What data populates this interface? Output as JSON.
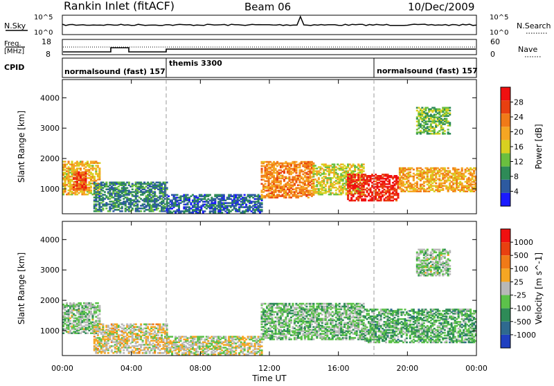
{
  "header": {
    "station": "Rankin Inlet (fitACF)",
    "beam": "Beam 06",
    "date": "10/Dec/2009"
  },
  "noise_panel": {
    "left_label": "N.Sky",
    "right_label": "N.Search",
    "left_ticks": [
      "10^5",
      "10^0"
    ],
    "right_ticks": [
      "10^5",
      "10^0"
    ]
  },
  "freq_panel": {
    "left_label_line1": "Freq.",
    "left_label_line2": "[MHz]",
    "right_label": "Nave",
    "left_ticks": [
      "18",
      "8"
    ],
    "right_ticks": [
      "60",
      "0"
    ]
  },
  "cpid_panel": {
    "label": "CPID",
    "modes": [
      {
        "name": "normalsound (fast) 157",
        "start_hour": 0,
        "end_hour": 6
      },
      {
        "name": "themis 3300",
        "start_hour": 6,
        "end_hour": 18
      },
      {
        "name": "normalsound (fast) 157",
        "start_hour": 18,
        "end_hour": 24
      }
    ]
  },
  "power_panel": {
    "ylabel": "Slant Range [km]",
    "yticks": [
      "4000",
      "3000",
      "2000",
      "1000"
    ],
    "colorbar_label": "Power [dB]",
    "colorbar_ticks": [
      "28",
      "24",
      "20",
      "16",
      "12",
      "8",
      "4"
    ],
    "colors": [
      "#1a1aff",
      "#2d5aa0",
      "#2e8b57",
      "#6abf3f",
      "#d8d020",
      "#f5a623",
      "#f07a18",
      "#e84010",
      "#f01010"
    ]
  },
  "velocity_panel": {
    "ylabel": "Slant Range [km]",
    "yticks": [
      "4000",
      "3000",
      "2000",
      "1000"
    ],
    "colorbar_label": "Velocity [m s^-1]",
    "colorbar_ticks": [
      "1000",
      "500",
      "100",
      "25",
      "-25",
      "-100",
      "-500",
      "-1000"
    ],
    "colors": [
      "#2040c0",
      "#2f6a8f",
      "#2e8b57",
      "#5cc24a",
      "#b8b8b8",
      "#f5a623",
      "#f07a18",
      "#e84010",
      "#f01010"
    ]
  },
  "x_axis": {
    "ticks": [
      "00:00",
      "04:00",
      "08:00",
      "12:00",
      "16:00",
      "20:00",
      "00:00"
    ],
    "label": "Time UT"
  },
  "chart_data": {
    "type": "heatmap",
    "time_range_hours": [
      0,
      24
    ],
    "range_ylim_km": [
      180,
      4600
    ],
    "power": {
      "cbar_range_db": [
        0,
        32
      ],
      "blobs": [
        {
          "t": [
            0.0,
            2.2
          ],
          "r": [
            800,
            1900
          ],
          "value": 18
        },
        {
          "t": [
            0.6,
            1.4
          ],
          "r": [
            950,
            1550
          ],
          "value": 26
        },
        {
          "t": [
            1.8,
            6.0
          ],
          "r": [
            250,
            1200
          ],
          "value": 8
        },
        {
          "t": [
            6.0,
            11.5
          ],
          "r": [
            200,
            800
          ],
          "value": 6
        },
        {
          "t": [
            11.5,
            14.5
          ],
          "r": [
            700,
            1900
          ],
          "value": 22
        },
        {
          "t": [
            14.5,
            17.5
          ],
          "r": [
            800,
            1800
          ],
          "value": 16
        },
        {
          "t": [
            16.5,
            19.5
          ],
          "r": [
            600,
            1500
          ],
          "value": 29
        },
        {
          "t": [
            19.5,
            24.0
          ],
          "r": [
            900,
            1700
          ],
          "value": 20
        },
        {
          "t": [
            20.5,
            22.5
          ],
          "r": [
            2800,
            3700
          ],
          "value": 12
        }
      ]
    },
    "velocity": {
      "cbar_range_ms": [
        -1000,
        1000
      ],
      "blobs": [
        {
          "t": [
            0.0,
            2.2
          ],
          "r": [
            900,
            1900
          ],
          "value": -150
        },
        {
          "t": [
            1.8,
            6.0
          ],
          "r": [
            250,
            1200
          ],
          "value": 80
        },
        {
          "t": [
            6.0,
            11.5
          ],
          "r": [
            200,
            800
          ],
          "value": 10
        },
        {
          "t": [
            11.5,
            17.5
          ],
          "r": [
            700,
            1900
          ],
          "value": -200
        },
        {
          "t": [
            17.5,
            24.0
          ],
          "r": [
            600,
            1700
          ],
          "value": -300
        },
        {
          "t": [
            20.5,
            22.5
          ],
          "r": [
            2800,
            3700
          ],
          "value": -150
        }
      ]
    }
  }
}
